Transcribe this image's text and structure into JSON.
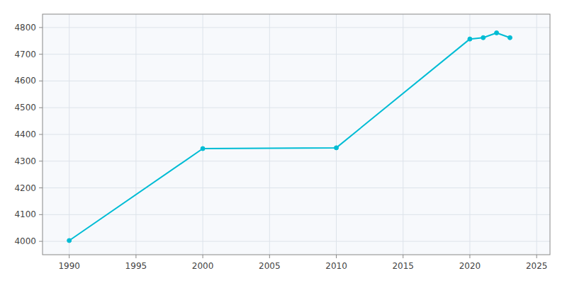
{
  "chart_data": {
    "type": "line",
    "x": [
      1990,
      2000,
      2010,
      2020,
      2021,
      2022,
      2023
    ],
    "values": [
      4003,
      4347,
      4350,
      4757,
      4762,
      4780,
      4762
    ],
    "color": "#00BCD4",
    "marker": "circle",
    "xlim": [
      1988,
      2026
    ],
    "ylim": [
      3950,
      4850
    ],
    "xticks": [
      1990,
      1995,
      2000,
      2005,
      2010,
      2015,
      2020,
      2025
    ],
    "yticks": [
      4000,
      4100,
      4200,
      4300,
      4400,
      4500,
      4600,
      4700,
      4800
    ],
    "grid": true
  }
}
